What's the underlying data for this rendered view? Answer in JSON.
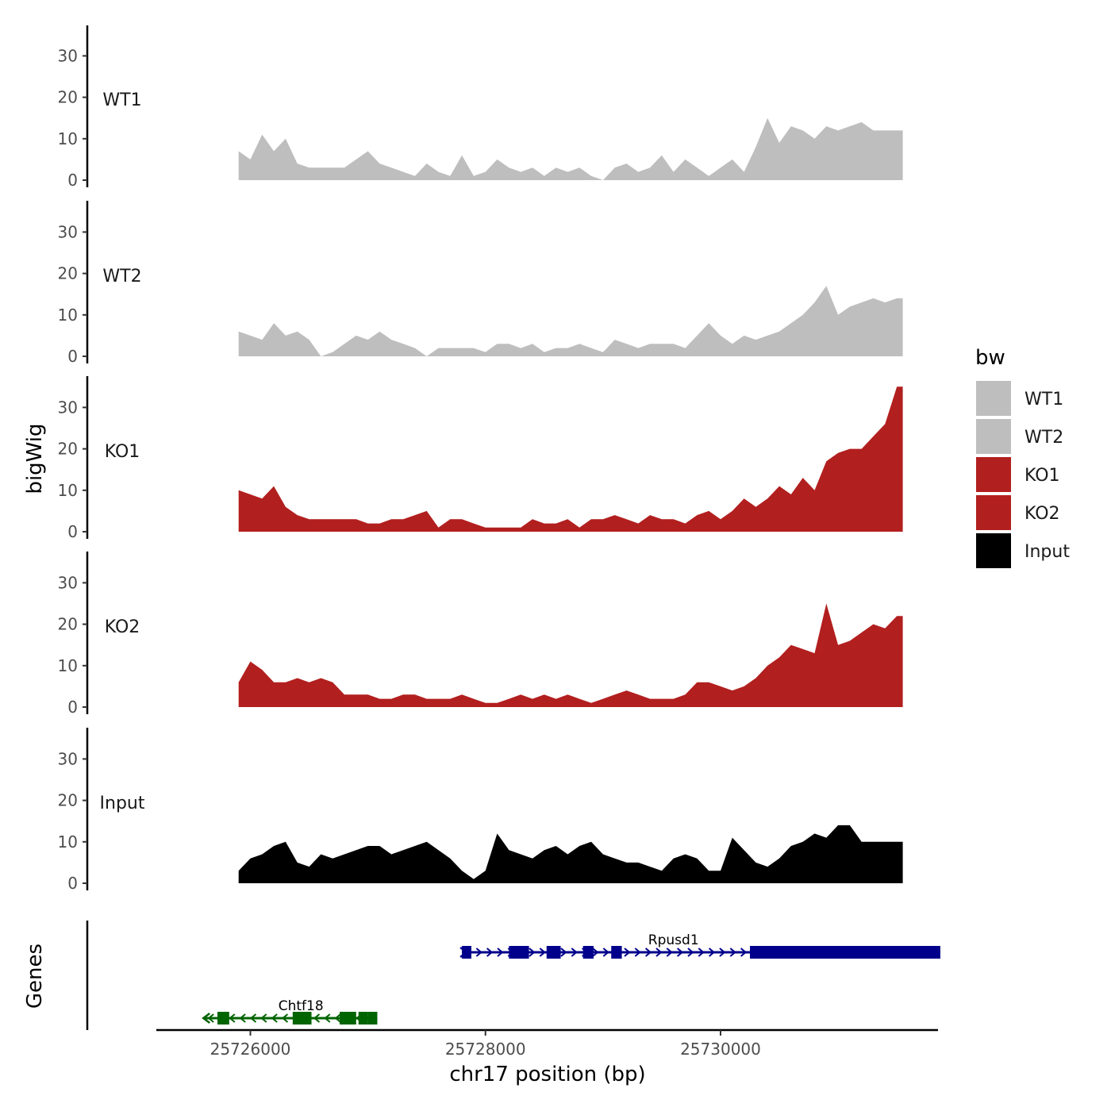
{
  "colors": {
    "WT1": "#BEBEBE",
    "WT2": "#BEBEBE",
    "KO1": "#B21F1F",
    "KO2": "#B21F1F",
    "Input": "#000000",
    "Rpusd1": "#00008B",
    "Chtf18": "#006400"
  },
  "chart_data": {
    "type": "area",
    "ylabel": "bigWig",
    "genes_label": "Genes",
    "xlabel": "chr17 position (bp)",
    "xlim": [
      25725200,
      25731850
    ],
    "ylim": [
      0,
      38
    ],
    "y_ticks": [
      0,
      10,
      20,
      30
    ],
    "x_ticks": [
      25726000,
      25728000,
      25730000
    ],
    "legend": {
      "title": "bw",
      "position": "right",
      "entries": [
        "WT1",
        "WT2",
        "KO1",
        "KO2",
        "Input"
      ]
    },
    "x": [
      25725900,
      25726000,
      25726100,
      25726200,
      25726300,
      25726400,
      25726500,
      25726600,
      25726700,
      25726800,
      25726900,
      25727000,
      25727100,
      25727200,
      25727300,
      25727400,
      25727500,
      25727600,
      25727700,
      25727800,
      25727900,
      25728000,
      25728100,
      25728200,
      25728300,
      25728400,
      25728500,
      25728600,
      25728700,
      25728800,
      25728900,
      25729000,
      25729100,
      25729200,
      25729300,
      25729400,
      25729500,
      25729600,
      25729700,
      25729800,
      25729900,
      25730000,
      25730100,
      25730200,
      25730300,
      25730400,
      25730500,
      25730600,
      25730700,
      25730800,
      25730900,
      25731000,
      25731100,
      25731200,
      25731300,
      25731400,
      25731500,
      25731550
    ],
    "series": [
      {
        "name": "WT1",
        "values": [
          7,
          5,
          11,
          7,
          10,
          4,
          3,
          3,
          3,
          3,
          5,
          7,
          4,
          3,
          2,
          1,
          4,
          2,
          1,
          6,
          1,
          2,
          5,
          3,
          2,
          3,
          1,
          3,
          2,
          3,
          1,
          0,
          3,
          4,
          2,
          3,
          6,
          2,
          5,
          3,
          1,
          3,
          5,
          2,
          8,
          15,
          9,
          13,
          12,
          10,
          13,
          12,
          13,
          14,
          12,
          12,
          12,
          12
        ]
      },
      {
        "name": "WT2",
        "values": [
          6,
          5,
          4,
          8,
          5,
          6,
          4,
          0,
          1,
          3,
          5,
          4,
          6,
          4,
          3,
          2,
          0,
          2,
          2,
          2,
          2,
          1,
          3,
          3,
          2,
          3,
          1,
          2,
          2,
          3,
          2,
          1,
          4,
          3,
          2,
          3,
          3,
          3,
          2,
          5,
          8,
          5,
          3,
          5,
          4,
          5,
          6,
          8,
          10,
          13,
          17,
          10,
          12,
          13,
          14,
          13,
          14,
          14
        ]
      },
      {
        "name": "KO1",
        "values": [
          10,
          9,
          8,
          11,
          6,
          4,
          3,
          3,
          3,
          3,
          3,
          2,
          2,
          3,
          3,
          4,
          5,
          1,
          3,
          3,
          2,
          1,
          1,
          1,
          1,
          3,
          2,
          2,
          3,
          1,
          3,
          3,
          4,
          3,
          2,
          4,
          3,
          3,
          2,
          4,
          5,
          3,
          5,
          8,
          6,
          8,
          11,
          9,
          13,
          10,
          17,
          19,
          20,
          20,
          23,
          26,
          35,
          35
        ]
      },
      {
        "name": "KO2",
        "values": [
          6,
          11,
          9,
          6,
          6,
          7,
          6,
          7,
          6,
          3,
          3,
          3,
          2,
          2,
          3,
          3,
          2,
          2,
          2,
          3,
          2,
          1,
          1,
          2,
          3,
          2,
          3,
          2,
          3,
          2,
          1,
          2,
          3,
          4,
          3,
          2,
          2,
          2,
          3,
          6,
          6,
          5,
          4,
          5,
          7,
          10,
          12,
          15,
          14,
          13,
          25,
          15,
          16,
          18,
          20,
          19,
          22,
          22
        ]
      },
      {
        "name": "Input",
        "values": [
          3,
          6,
          7,
          9,
          10,
          5,
          4,
          7,
          6,
          7,
          8,
          9,
          9,
          7,
          8,
          9,
          10,
          8,
          6,
          3,
          1,
          3,
          12,
          8,
          7,
          6,
          8,
          9,
          7,
          9,
          10,
          7,
          6,
          5,
          5,
          4,
          3,
          6,
          7,
          6,
          3,
          3,
          11,
          8,
          5,
          4,
          6,
          9,
          10,
          12,
          11,
          14,
          14,
          10,
          10,
          10,
          10,
          10
        ]
      }
    ],
    "genes": [
      {
        "name": "Rpusd1",
        "strand": "+",
        "start": 25727800,
        "end": 25731870,
        "label_x": 25729600,
        "exons": [
          [
            25727800,
            25727880
          ],
          [
            25728200,
            25728370
          ],
          [
            25728520,
            25728640
          ],
          [
            25728830,
            25728920
          ],
          [
            25729070,
            25729160
          ],
          [
            25730250,
            25731870
          ]
        ]
      },
      {
        "name": "Chtf18",
        "strand": "-",
        "start": 25725600,
        "end": 25727080,
        "label_x": 25726430,
        "exons": [
          [
            25725720,
            25725820
          ],
          [
            25726360,
            25726520
          ],
          [
            25726760,
            25726900
          ],
          [
            25727000,
            25727080
          ],
          [
            25726920,
            25727000
          ]
        ]
      }
    ]
  }
}
